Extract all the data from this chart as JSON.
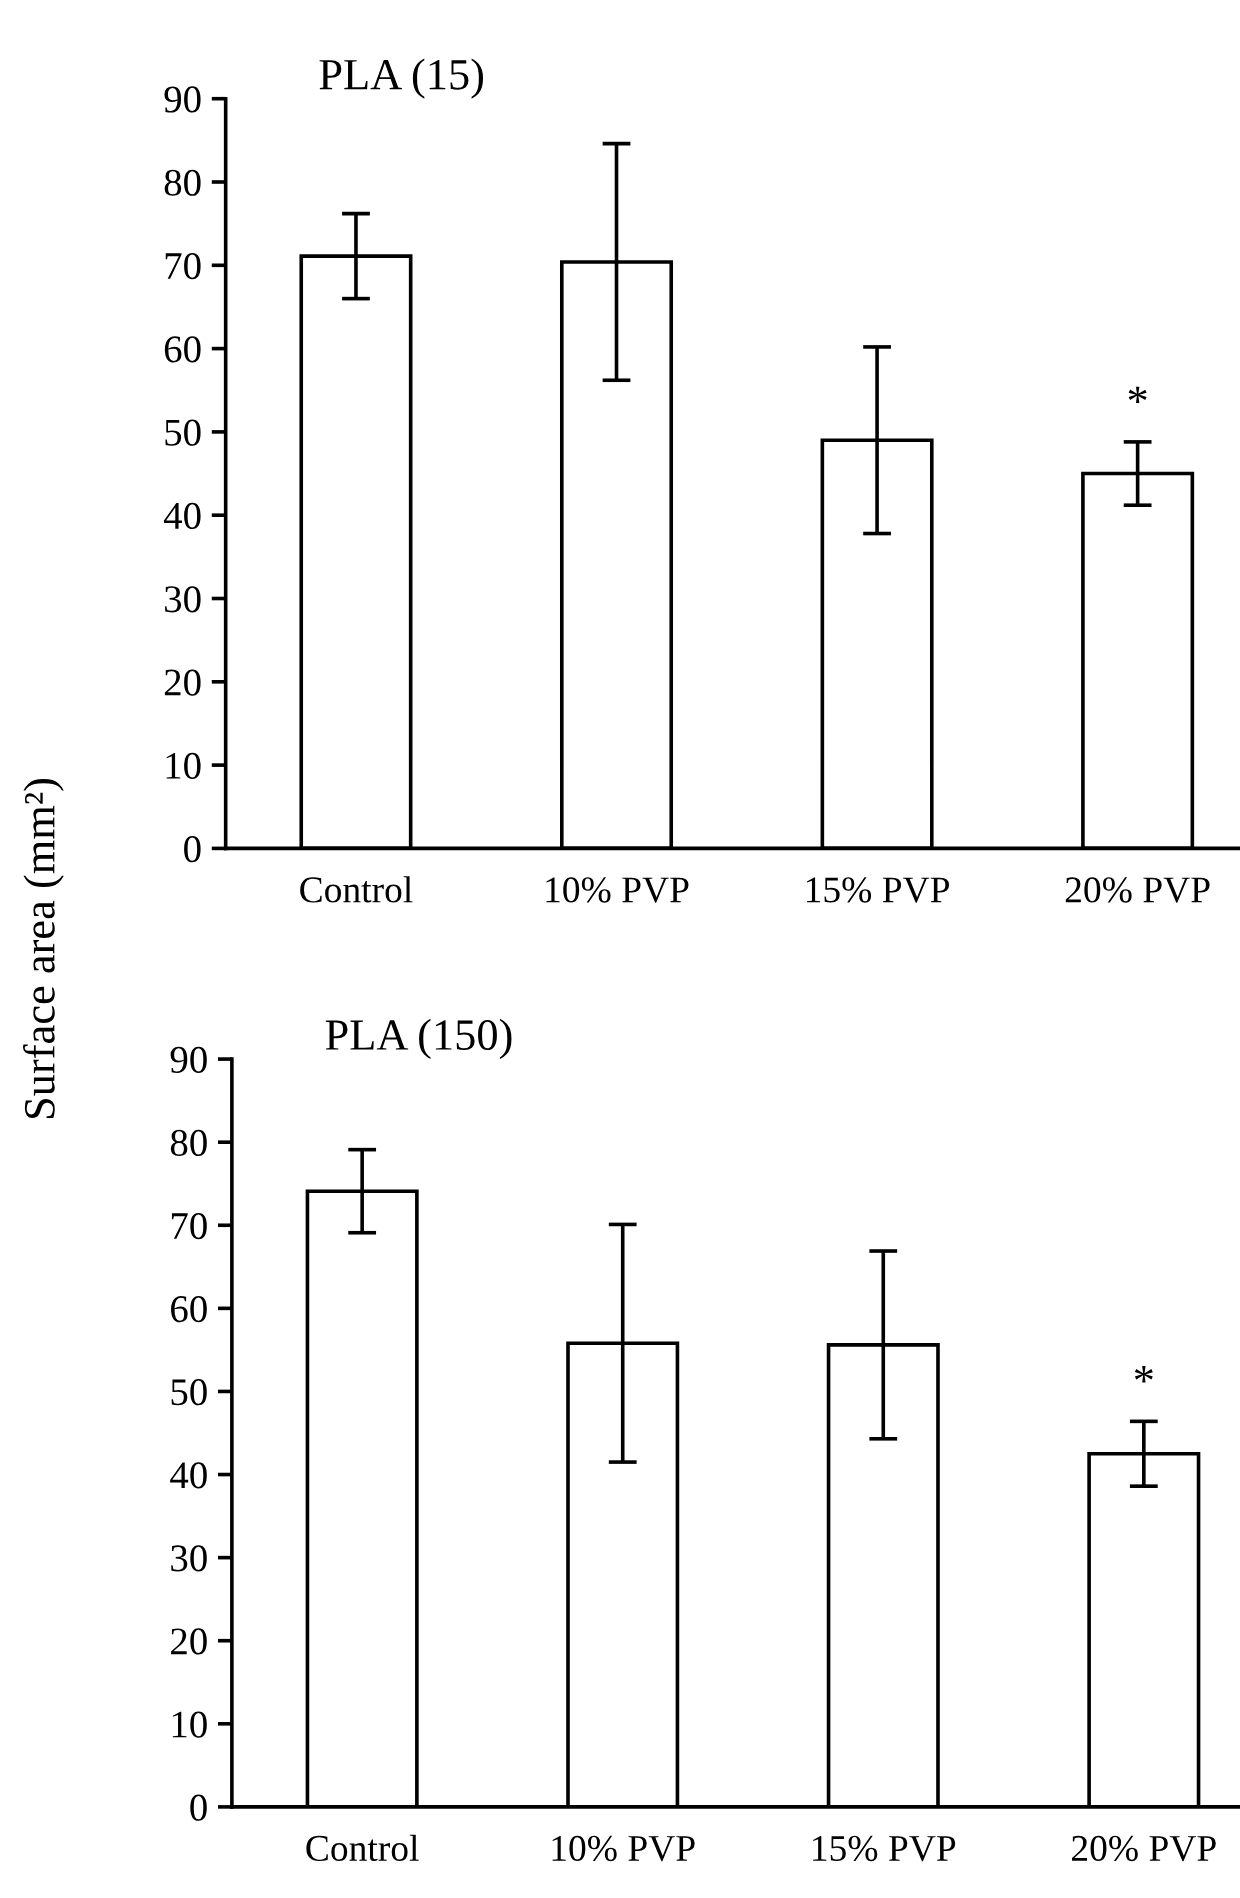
{
  "chart_data": [
    {
      "type": "bar",
      "title": "PLA (15)",
      "ylabel": "Surface area (mm²)",
      "categories": [
        "Control",
        "10% PVP",
        "15% PVP",
        "20% PVP"
      ],
      "values": [
        71.1,
        70.4,
        49.0,
        45.0
      ],
      "errors": [
        5.1,
        14.2,
        11.2,
        3.8
      ],
      "color": "#ffffff",
      "ylim": [
        0,
        90
      ],
      "yticks": [
        0,
        10,
        20,
        30,
        40,
        50,
        60,
        70,
        80,
        90
      ],
      "grid": false,
      "annotations": [
        "*"
      ]
    },
    {
      "type": "bar",
      "title": "PLA (150)",
      "categories": [
        "Control",
        "10% PVP",
        "15% PVP",
        "20% PVP"
      ],
      "values": [
        74.1,
        55.8,
        55.6,
        42.5
      ],
      "errors": [
        5.0,
        14.3,
        11.3,
        3.9
      ],
      "color": "#ffffff",
      "ylim": [
        0,
        90
      ],
      "yticks": [
        0,
        10,
        20,
        30,
        40,
        50,
        60,
        70,
        80,
        90
      ],
      "grid": false,
      "annotations": [
        "*"
      ]
    }
  ]
}
